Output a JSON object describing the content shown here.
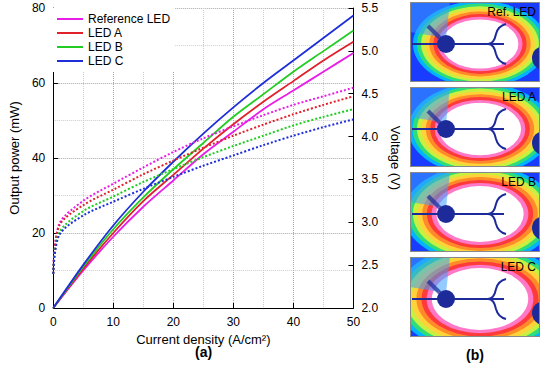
{
  "chart_data": {
    "type": "line",
    "panel_label": "(a)",
    "x_label": "Current density (A/cm²)",
    "y_label": "Output power (mW)",
    "y2_label": "Voltage (V)",
    "xlim": [
      0,
      50
    ],
    "xticks": [
      0,
      10,
      20,
      30,
      40,
      50
    ],
    "ylim": [
      0,
      80
    ],
    "yticks": [
      0,
      20,
      40,
      60,
      80
    ],
    "y2lim": [
      2,
      5.5
    ],
    "y2ticks": [
      {
        "value": 2,
        "label": "2.0"
      },
      {
        "value": 2.5,
        "label": "2.5"
      },
      {
        "value": 3,
        "label": "3.0"
      },
      {
        "value": 3.5,
        "label": "3.5"
      },
      {
        "value": 4,
        "label": "4.0"
      },
      {
        "value": 4.5,
        "label": "4.5"
      },
      {
        "value": 5,
        "label": "5.0"
      },
      {
        "value": 5.5,
        "label": "5.5"
      }
    ],
    "grid": true,
    "legend": "upper left",
    "series": [
      {
        "name": "Reference LED",
        "color": "#e81ee8",
        "line_style": "solid",
        "x": [
          0,
          5,
          10,
          15,
          20,
          25,
          30,
          35,
          40,
          45,
          50
        ],
        "values": [
          0,
          10,
          19,
          27,
          34,
          41,
          47,
          53,
          58,
          63,
          68
        ]
      },
      {
        "name": "LED A",
        "color": "#e0202a",
        "line_style": "solid",
        "x": [
          0,
          5,
          10,
          15,
          20,
          25,
          30,
          35,
          40,
          45,
          50
        ],
        "values": [
          0,
          10.5,
          20,
          28.5,
          35.5,
          42.5,
          49,
          55,
          60.5,
          66,
          71
        ]
      },
      {
        "name": "LED B",
        "color": "#22cc22",
        "line_style": "solid",
        "x": [
          0,
          5,
          10,
          15,
          20,
          25,
          30,
          35,
          40,
          45,
          50
        ],
        "values": [
          0,
          11,
          21,
          29.5,
          37,
          44,
          51,
          57,
          63,
          68.5,
          74
        ]
      },
      {
        "name": "LED C",
        "color": "#1f2fd8",
        "line_style": "solid",
        "x": [
          0,
          5,
          10,
          15,
          20,
          25,
          30,
          35,
          40,
          45,
          50
        ],
        "values": [
          0,
          11.5,
          22,
          31,
          39,
          46.5,
          53.5,
          60,
          66,
          72,
          78
        ]
      },
      {
        "name": "Reference LED",
        "color": "#e81ee8",
        "line_style": "dotted",
        "axis": "y2",
        "x": [
          0,
          1,
          5,
          10,
          15,
          20,
          25,
          30,
          35,
          40,
          45,
          50
        ],
        "values": [
          2.4,
          2.98,
          3.25,
          3.45,
          3.64,
          3.82,
          3.98,
          4.12,
          4.25,
          4.37,
          4.47,
          4.57
        ]
      },
      {
        "name": "LED A",
        "color": "#e0202a",
        "line_style": "dotted",
        "axis": "y2",
        "x": [
          0,
          1,
          5,
          10,
          15,
          20,
          25,
          30,
          35,
          40,
          45,
          50
        ],
        "values": [
          2.4,
          2.96,
          3.2,
          3.38,
          3.56,
          3.72,
          3.87,
          4.01,
          4.14,
          4.26,
          4.37,
          4.47
        ]
      },
      {
        "name": "LED B",
        "color": "#22cc22",
        "line_style": "dotted",
        "axis": "y2",
        "x": [
          0,
          1,
          5,
          10,
          15,
          20,
          25,
          30,
          35,
          40,
          45,
          50
        ],
        "values": [
          2.4,
          2.88,
          3.13,
          3.3,
          3.47,
          3.62,
          3.76,
          3.89,
          4.01,
          4.13,
          4.23,
          4.32
        ]
      },
      {
        "name": "LED C",
        "color": "#1f2fd8",
        "line_style": "dotted",
        "axis": "y2",
        "x": [
          0,
          1,
          5,
          10,
          15,
          20,
          25,
          30,
          35,
          40,
          45,
          50
        ],
        "values": [
          2.4,
          2.85,
          3.08,
          3.24,
          3.39,
          3.53,
          3.66,
          3.78,
          3.9,
          4.01,
          4.11,
          4.2
        ]
      }
    ]
  },
  "images": {
    "panel_label": "(b)",
    "panels": [
      {
        "label": "Ref. LED"
      },
      {
        "label": "LED A"
      },
      {
        "label": "LED B"
      },
      {
        "label": "LED C"
      }
    ]
  }
}
